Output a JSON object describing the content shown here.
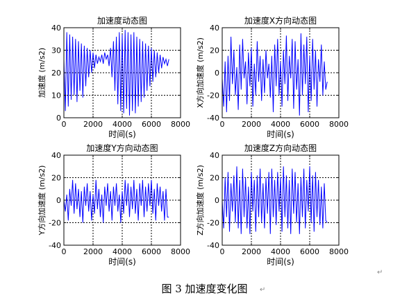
{
  "figure_caption": "图 3  加速度变化图",
  "paragraph_mark": "↵",
  "chart_data": [
    {
      "type": "line",
      "title": "加速度动态图",
      "xlabel": "时间(s)",
      "ylabel": "加速度 (m/s2)",
      "xlim": [
        0,
        8000
      ],
      "ylim": [
        0,
        40
      ],
      "xticks": [
        0,
        2000,
        4000,
        6000,
        8000
      ],
      "yticks": [
        0,
        10,
        20,
        30,
        40
      ],
      "grid": "dotted",
      "line_color": "#0000ff",
      "x": [
        0,
        100,
        200,
        300,
        400,
        500,
        600,
        700,
        800,
        900,
        1000,
        1100,
        1200,
        1300,
        1400,
        1500,
        1600,
        1700,
        1800,
        1900,
        2000,
        2100,
        2200,
        2300,
        2400,
        2500,
        2600,
        2700,
        2800,
        2900,
        3000,
        3100,
        3200,
        3300,
        3400,
        3500,
        3600,
        3700,
        3800,
        3900,
        4000,
        4100,
        4200,
        4300,
        4400,
        4500,
        4600,
        4700,
        4800,
        4900,
        5000,
        5100,
        5200,
        5300,
        5400,
        5500,
        5600,
        5700,
        5800,
        5900,
        6000,
        6100,
        6200,
        6300,
        6400,
        6500,
        6600,
        6700,
        6800,
        6900,
        7000,
        7100,
        7200
      ],
      "y": [
        26,
        3,
        38,
        5,
        37,
        8,
        36,
        10,
        35,
        7,
        34,
        12,
        33,
        9,
        32,
        14,
        31,
        18,
        30,
        20,
        29,
        22,
        28,
        24,
        27,
        25,
        28,
        24,
        29,
        26,
        28,
        23,
        31,
        18,
        34,
        12,
        36,
        6,
        38,
        3,
        37,
        2,
        39,
        4,
        38,
        1,
        37,
        3,
        38,
        2,
        36,
        5,
        35,
        7,
        34,
        9,
        33,
        12,
        32,
        14,
        31,
        16,
        30,
        18,
        29,
        20,
        28,
        22,
        27,
        24,
        26,
        23,
        26
      ]
    },
    {
      "type": "line",
      "title": "加速度X方向动态图",
      "xlabel": "时间(s)",
      "ylabel": "X方向加速度 (m/s2)",
      "xlim": [
        0,
        8000
      ],
      "ylim": [
        -40,
        40
      ],
      "xticks": [
        0,
        2000,
        4000,
        6000,
        8000
      ],
      "yticks": [
        -40,
        -20,
        0,
        20,
        40
      ],
      "grid": "dotted",
      "line_color": "#0000ff",
      "x": [
        0,
        100,
        200,
        300,
        400,
        500,
        600,
        700,
        800,
        900,
        1000,
        1100,
        1200,
        1300,
        1400,
        1500,
        1600,
        1700,
        1800,
        1900,
        2000,
        2100,
        2200,
        2300,
        2400,
        2500,
        2600,
        2700,
        2800,
        2900,
        3000,
        3100,
        3200,
        3300,
        3400,
        3500,
        3600,
        3700,
        3800,
        3900,
        4000,
        4100,
        4200,
        4300,
        4400,
        4500,
        4600,
        4700,
        4800,
        4900,
        5000,
        5100,
        5200,
        5300,
        5400,
        5500,
        5600,
        5700,
        5800,
        5900,
        6000,
        6100,
        6200,
        6300,
        6400,
        6500,
        6600,
        6700,
        6800,
        6900,
        7000,
        7100,
        7200
      ],
      "y": [
        -5,
        -30,
        10,
        -35,
        15,
        -25,
        32,
        -10,
        20,
        -20,
        5,
        -33,
        25,
        -15,
        30,
        -5,
        10,
        -28,
        18,
        -12,
        22,
        -30,
        8,
        -20,
        28,
        -8,
        15,
        -25,
        12,
        -18,
        20,
        -5,
        8,
        -22,
        15,
        -35,
        25,
        -12,
        30,
        -20,
        10,
        -30,
        20,
        -10,
        33,
        -25,
        15,
        -5,
        30,
        -32,
        28,
        -15,
        12,
        -38,
        35,
        -20,
        25,
        -10,
        32,
        -35,
        15,
        -25,
        30,
        -15,
        20,
        -30,
        12,
        -8,
        25,
        -20,
        10,
        -15,
        -8
      ]
    },
    {
      "type": "line",
      "title": "加速度Y方向动态图",
      "xlabel": "时间(s)",
      "ylabel": "Y方向加速度 (m/s2)",
      "xlim": [
        0,
        8000
      ],
      "ylim": [
        -40,
        40
      ],
      "xticks": [
        0,
        2000,
        4000,
        6000,
        8000
      ],
      "yticks": [
        -40,
        -20,
        0,
        20,
        40
      ],
      "grid": "dotted",
      "line_color": "#0000ff",
      "x": [
        0,
        100,
        200,
        300,
        400,
        500,
        600,
        700,
        800,
        900,
        1000,
        1100,
        1200,
        1300,
        1400,
        1500,
        1600,
        1700,
        1800,
        1900,
        2000,
        2100,
        2200,
        2300,
        2400,
        2500,
        2600,
        2700,
        2800,
        2900,
        3000,
        3100,
        3200,
        3300,
        3400,
        3500,
        3600,
        3700,
        3800,
        3900,
        4000,
        4100,
        4200,
        4300,
        4400,
        4500,
        4600,
        4700,
        4800,
        4900,
        5000,
        5100,
        5200,
        5300,
        5400,
        5500,
        5600,
        5700,
        5800,
        5900,
        6000,
        6100,
        6200,
        6300,
        6400,
        6500,
        6600,
        6700,
        6800,
        6900,
        7000,
        7100,
        7200
      ],
      "y": [
        0,
        -10,
        5,
        -18,
        10,
        -5,
        18,
        -12,
        15,
        -8,
        10,
        -15,
        8,
        -20,
        12,
        -5,
        15,
        -10,
        8,
        -18,
        5,
        -12,
        18,
        -8,
        10,
        -15,
        5,
        -20,
        12,
        -5,
        15,
        -10,
        8,
        -18,
        12,
        -5,
        15,
        -10,
        5,
        -20,
        8,
        -12,
        18,
        -5,
        15,
        -15,
        12,
        -8,
        18,
        -12,
        10,
        -18,
        15,
        -5,
        18,
        -15,
        12,
        -10,
        15,
        -5,
        18,
        -12,
        10,
        -18,
        15,
        -5,
        12,
        -10,
        8,
        -18,
        10,
        -15,
        -15
      ]
    },
    {
      "type": "line",
      "title": "加速度Z方向动态图",
      "xlabel": "时间(s)",
      "ylabel": "Z方向加速度 (m/s2)",
      "xlim": [
        0,
        8000
      ],
      "ylim": [
        -40,
        40
      ],
      "xticks": [
        0,
        2000,
        4000,
        6000,
        8000
      ],
      "yticks": [
        -40,
        -20,
        0,
        20,
        40
      ],
      "grid": "dotted",
      "line_color": "#0000ff",
      "x": [
        0,
        100,
        200,
        300,
        400,
        500,
        600,
        700,
        800,
        900,
        1000,
        1100,
        1200,
        1300,
        1400,
        1500,
        1600,
        1700,
        1800,
        1900,
        2000,
        2100,
        2200,
        2300,
        2400,
        2500,
        2600,
        2700,
        2800,
        2900,
        3000,
        3100,
        3200,
        3300,
        3400,
        3500,
        3600,
        3700,
        3800,
        3900,
        4000,
        4100,
        4200,
        4300,
        4400,
        4500,
        4600,
        4700,
        4800,
        4900,
        5000,
        5100,
        5200,
        5300,
        5400,
        5500,
        5600,
        5700,
        5800,
        5900,
        6000,
        6100,
        6200,
        6300,
        6400,
        6500,
        6600,
        6700,
        6800,
        6900,
        7000,
        7100,
        7200
      ],
      "y": [
        0,
        -25,
        20,
        -15,
        25,
        -28,
        15,
        -10,
        22,
        -20,
        30,
        -25,
        18,
        -30,
        28,
        -15,
        20,
        -25,
        12,
        -30,
        25,
        -10,
        18,
        -28,
        22,
        -15,
        28,
        -20,
        15,
        -25,
        20,
        -12,
        25,
        -30,
        28,
        -15,
        18,
        -22,
        25,
        -10,
        20,
        -28,
        30,
        -15,
        22,
        -25,
        18,
        -30,
        28,
        -12,
        25,
        -20,
        15,
        -30,
        20,
        -15,
        28,
        -25,
        18,
        -10,
        30,
        -20,
        22,
        -28,
        25,
        -15,
        18,
        -22,
        12,
        -25,
        15,
        -18,
        -20
      ]
    }
  ]
}
